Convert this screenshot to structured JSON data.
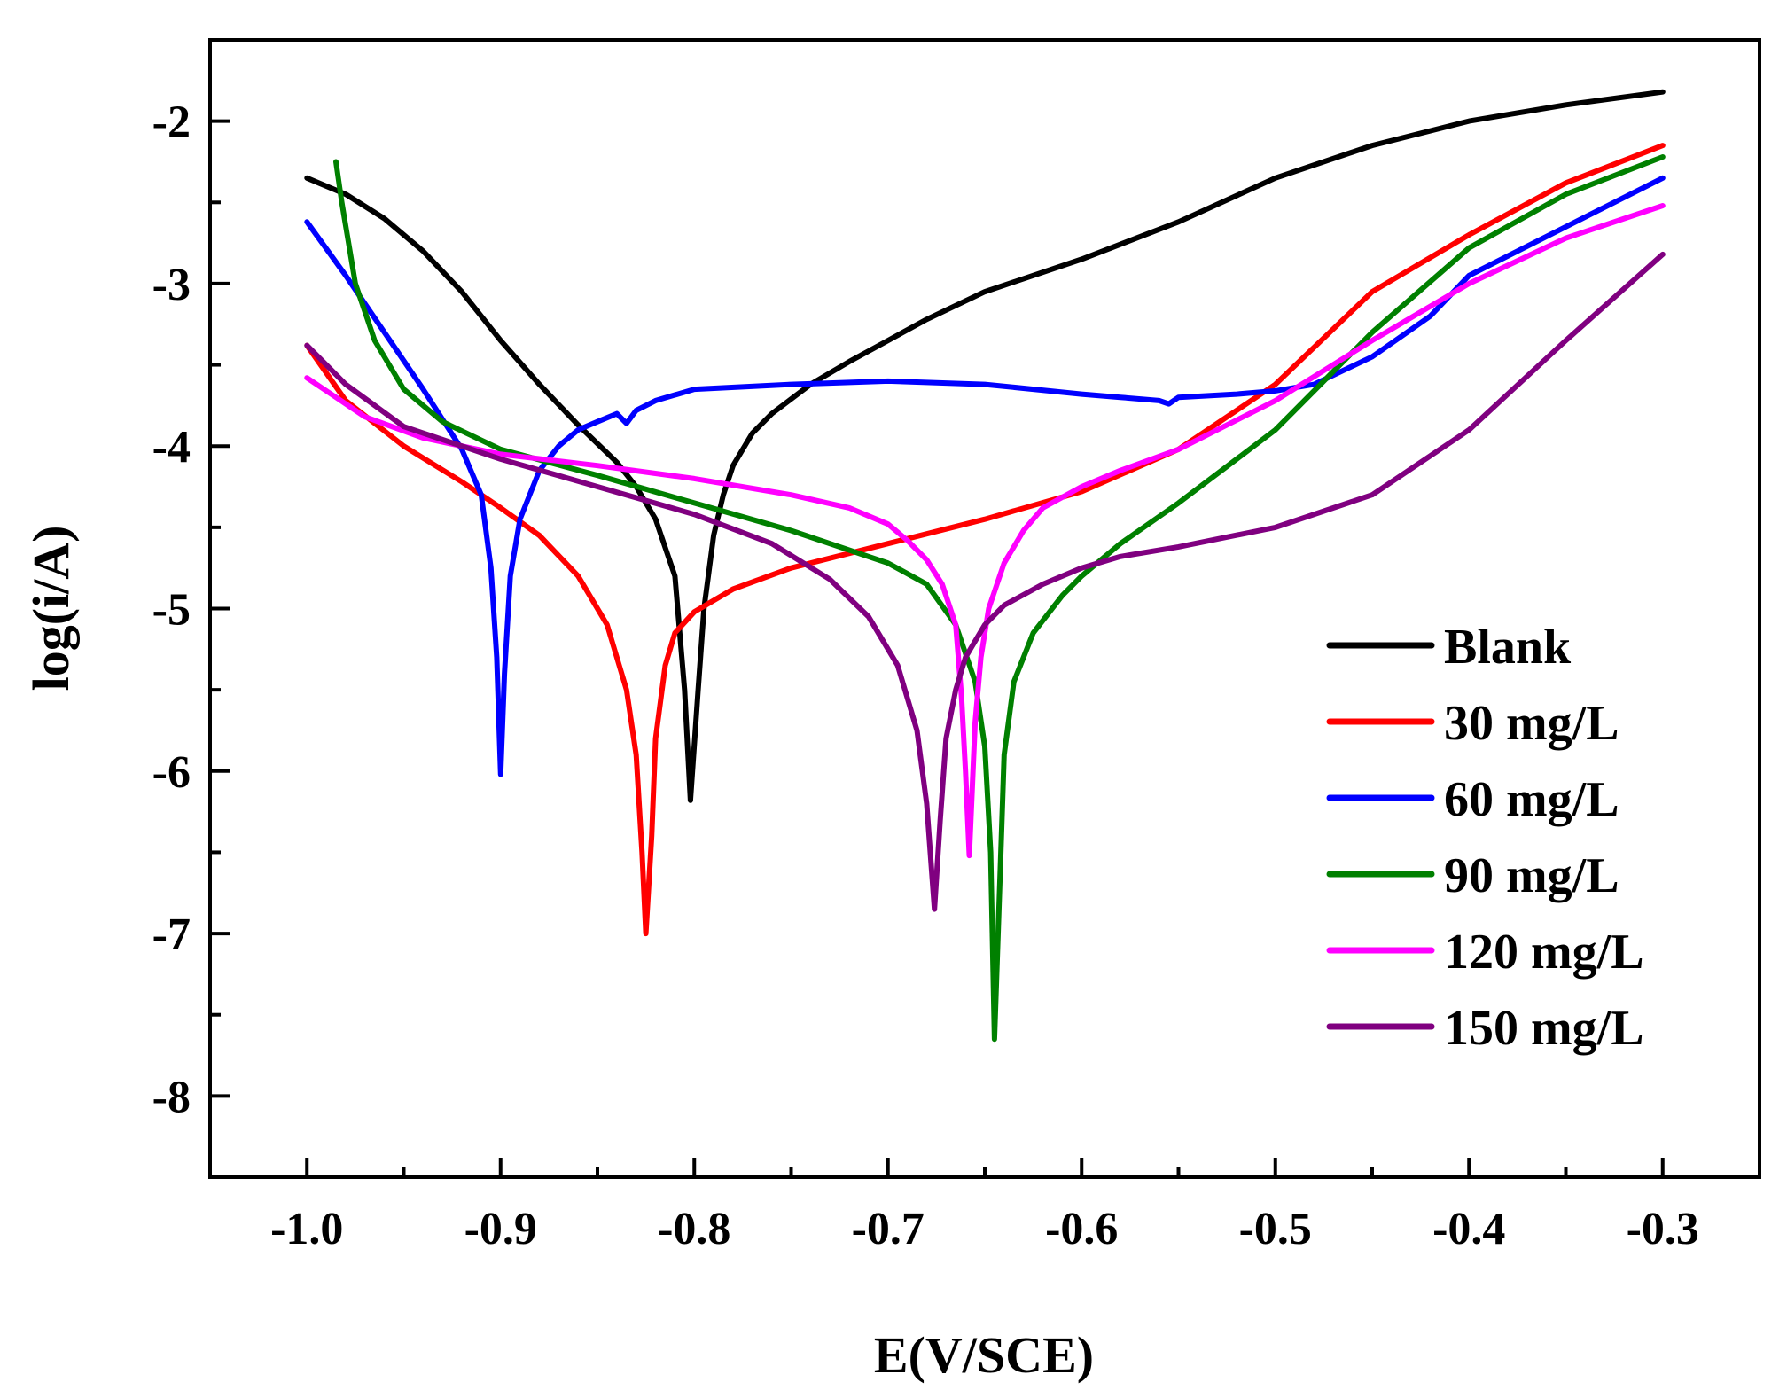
{
  "chart_data": {
    "type": "line",
    "title": "",
    "xlabel": "E(V/SCE)",
    "ylabel": "log(i/A)",
    "xlim": [
      -1.05,
      -0.25
    ],
    "ylim": [
      -8.5,
      -1.5
    ],
    "x_ticks": [
      -1.0,
      -0.9,
      -0.8,
      -0.7,
      -0.6,
      -0.5,
      -0.4,
      -0.3
    ],
    "x_tick_labels": [
      "-1.0",
      "-0.9",
      "-0.8",
      "-0.7",
      "-0.6",
      "-0.5",
      "-0.4",
      "-0.3"
    ],
    "y_ticks": [
      -2,
      -3,
      -4,
      -5,
      -6,
      -7,
      -8
    ],
    "y_tick_labels": [
      "-2",
      "-3",
      "-4",
      "-5",
      "-6",
      "-7",
      "-8"
    ],
    "grid": false,
    "legend_position": "bottom-right",
    "series": [
      {
        "name": "Blank",
        "color": "#000000",
        "points": [
          [
            -1.0,
            -2.35
          ],
          [
            -0.98,
            -2.45
          ],
          [
            -0.96,
            -2.6
          ],
          [
            -0.94,
            -2.8
          ],
          [
            -0.92,
            -3.05
          ],
          [
            -0.9,
            -3.35
          ],
          [
            -0.88,
            -3.62
          ],
          [
            -0.86,
            -3.87
          ],
          [
            -0.84,
            -4.1
          ],
          [
            -0.83,
            -4.25
          ],
          [
            -0.82,
            -4.45
          ],
          [
            -0.81,
            -4.8
          ],
          [
            -0.805,
            -5.5
          ],
          [
            -0.802,
            -6.18
          ],
          [
            -0.798,
            -5.5
          ],
          [
            -0.795,
            -5.0
          ],
          [
            -0.79,
            -4.55
          ],
          [
            -0.785,
            -4.3
          ],
          [
            -0.78,
            -4.12
          ],
          [
            -0.77,
            -3.92
          ],
          [
            -0.76,
            -3.8
          ],
          [
            -0.74,
            -3.62
          ],
          [
            -0.72,
            -3.48
          ],
          [
            -0.7,
            -3.35
          ],
          [
            -0.68,
            -3.22
          ],
          [
            -0.65,
            -3.05
          ],
          [
            -0.6,
            -2.85
          ],
          [
            -0.55,
            -2.62
          ],
          [
            -0.5,
            -2.35
          ],
          [
            -0.45,
            -2.15
          ],
          [
            -0.4,
            -2.0
          ],
          [
            -0.35,
            -1.9
          ],
          [
            -0.3,
            -1.82
          ]
        ]
      },
      {
        "name": "30 mg/L",
        "color": "#ff0000",
        "points": [
          [
            -1.0,
            -3.38
          ],
          [
            -0.98,
            -3.72
          ],
          [
            -0.95,
            -4.0
          ],
          [
            -0.92,
            -4.22
          ],
          [
            -0.9,
            -4.38
          ],
          [
            -0.88,
            -4.55
          ],
          [
            -0.86,
            -4.8
          ],
          [
            -0.845,
            -5.1
          ],
          [
            -0.835,
            -5.5
          ],
          [
            -0.83,
            -5.9
          ],
          [
            -0.827,
            -6.5
          ],
          [
            -0.825,
            -7.0
          ],
          [
            -0.822,
            -6.4
          ],
          [
            -0.82,
            -5.8
          ],
          [
            -0.815,
            -5.35
          ],
          [
            -0.81,
            -5.15
          ],
          [
            -0.8,
            -5.02
          ],
          [
            -0.78,
            -4.88
          ],
          [
            -0.75,
            -4.75
          ],
          [
            -0.7,
            -4.6
          ],
          [
            -0.65,
            -4.45
          ],
          [
            -0.6,
            -4.28
          ],
          [
            -0.55,
            -4.02
          ],
          [
            -0.5,
            -3.62
          ],
          [
            -0.45,
            -3.05
          ],
          [
            -0.4,
            -2.7
          ],
          [
            -0.35,
            -2.38
          ],
          [
            -0.3,
            -2.15
          ]
        ]
      },
      {
        "name": "60 mg/L",
        "color": "#0000ff",
        "points": [
          [
            -1.0,
            -2.62
          ],
          [
            -0.98,
            -2.95
          ],
          [
            -0.96,
            -3.3
          ],
          [
            -0.94,
            -3.65
          ],
          [
            -0.92,
            -4.02
          ],
          [
            -0.91,
            -4.3
          ],
          [
            -0.905,
            -4.75
          ],
          [
            -0.902,
            -5.3
          ],
          [
            -0.9,
            -6.02
          ],
          [
            -0.898,
            -5.4
          ],
          [
            -0.895,
            -4.8
          ],
          [
            -0.89,
            -4.45
          ],
          [
            -0.88,
            -4.15
          ],
          [
            -0.87,
            -4.0
          ],
          [
            -0.86,
            -3.9
          ],
          [
            -0.85,
            -3.85
          ],
          [
            -0.84,
            -3.8
          ],
          [
            -0.835,
            -3.86
          ],
          [
            -0.83,
            -3.78
          ],
          [
            -0.82,
            -3.72
          ],
          [
            -0.8,
            -3.65
          ],
          [
            -0.75,
            -3.62
          ],
          [
            -0.7,
            -3.6
          ],
          [
            -0.65,
            -3.62
          ],
          [
            -0.6,
            -3.68
          ],
          [
            -0.58,
            -3.7
          ],
          [
            -0.56,
            -3.72
          ],
          [
            -0.555,
            -3.74
          ],
          [
            -0.55,
            -3.7
          ],
          [
            -0.52,
            -3.68
          ],
          [
            -0.5,
            -3.66
          ],
          [
            -0.48,
            -3.62
          ],
          [
            -0.45,
            -3.45
          ],
          [
            -0.42,
            -3.2
          ],
          [
            -0.4,
            -2.95
          ],
          [
            -0.35,
            -2.65
          ],
          [
            -0.3,
            -2.35
          ]
        ]
      },
      {
        "name": "90 mg/L",
        "color": "#008000",
        "points": [
          [
            -0.985,
            -2.25
          ],
          [
            -0.982,
            -2.5
          ],
          [
            -0.975,
            -3.0
          ],
          [
            -0.965,
            -3.35
          ],
          [
            -0.95,
            -3.65
          ],
          [
            -0.93,
            -3.85
          ],
          [
            -0.9,
            -4.02
          ],
          [
            -0.85,
            -4.18
          ],
          [
            -0.8,
            -4.35
          ],
          [
            -0.75,
            -4.52
          ],
          [
            -0.7,
            -4.72
          ],
          [
            -0.68,
            -4.85
          ],
          [
            -0.665,
            -5.1
          ],
          [
            -0.655,
            -5.45
          ],
          [
            -0.65,
            -5.85
          ],
          [
            -0.647,
            -6.5
          ],
          [
            -0.645,
            -7.65
          ],
          [
            -0.642,
            -6.6
          ],
          [
            -0.64,
            -5.9
          ],
          [
            -0.635,
            -5.45
          ],
          [
            -0.625,
            -5.15
          ],
          [
            -0.61,
            -4.92
          ],
          [
            -0.6,
            -4.8
          ],
          [
            -0.58,
            -4.6
          ],
          [
            -0.55,
            -4.35
          ],
          [
            -0.5,
            -3.9
          ],
          [
            -0.45,
            -3.3
          ],
          [
            -0.4,
            -2.78
          ],
          [
            -0.35,
            -2.45
          ],
          [
            -0.3,
            -2.22
          ]
        ]
      },
      {
        "name": "120 mg/L",
        "color": "#ff00ff",
        "points": [
          [
            -1.0,
            -3.58
          ],
          [
            -0.97,
            -3.82
          ],
          [
            -0.94,
            -3.95
          ],
          [
            -0.9,
            -4.05
          ],
          [
            -0.85,
            -4.12
          ],
          [
            -0.8,
            -4.2
          ],
          [
            -0.75,
            -4.3
          ],
          [
            -0.72,
            -4.38
          ],
          [
            -0.7,
            -4.48
          ],
          [
            -0.69,
            -4.58
          ],
          [
            -0.68,
            -4.7
          ],
          [
            -0.672,
            -4.85
          ],
          [
            -0.665,
            -5.1
          ],
          [
            -0.662,
            -5.55
          ],
          [
            -0.66,
            -6.0
          ],
          [
            -0.658,
            -6.52
          ],
          [
            -0.655,
            -5.7
          ],
          [
            -0.652,
            -5.3
          ],
          [
            -0.648,
            -5.0
          ],
          [
            -0.64,
            -4.72
          ],
          [
            -0.63,
            -4.52
          ],
          [
            -0.62,
            -4.38
          ],
          [
            -0.6,
            -4.25
          ],
          [
            -0.58,
            -4.15
          ],
          [
            -0.55,
            -4.02
          ],
          [
            -0.5,
            -3.72
          ],
          [
            -0.45,
            -3.35
          ],
          [
            -0.4,
            -3.0
          ],
          [
            -0.35,
            -2.72
          ],
          [
            -0.3,
            -2.52
          ]
        ]
      },
      {
        "name": "150 mg/L",
        "color": "#800080",
        "points": [
          [
            -1.0,
            -3.38
          ],
          [
            -0.98,
            -3.62
          ],
          [
            -0.95,
            -3.88
          ],
          [
            -0.9,
            -4.08
          ],
          [
            -0.85,
            -4.25
          ],
          [
            -0.8,
            -4.42
          ],
          [
            -0.76,
            -4.6
          ],
          [
            -0.73,
            -4.82
          ],
          [
            -0.71,
            -5.05
          ],
          [
            -0.695,
            -5.35
          ],
          [
            -0.685,
            -5.75
          ],
          [
            -0.68,
            -6.2
          ],
          [
            -0.676,
            -6.85
          ],
          [
            -0.673,
            -6.3
          ],
          [
            -0.67,
            -5.8
          ],
          [
            -0.665,
            -5.5
          ],
          [
            -0.66,
            -5.3
          ],
          [
            -0.65,
            -5.1
          ],
          [
            -0.64,
            -4.98
          ],
          [
            -0.62,
            -4.85
          ],
          [
            -0.6,
            -4.75
          ],
          [
            -0.58,
            -4.68
          ],
          [
            -0.55,
            -4.62
          ],
          [
            -0.5,
            -4.5
          ],
          [
            -0.45,
            -4.3
          ],
          [
            -0.4,
            -3.9
          ],
          [
            -0.35,
            -3.35
          ],
          [
            -0.3,
            -2.82
          ]
        ]
      }
    ]
  }
}
